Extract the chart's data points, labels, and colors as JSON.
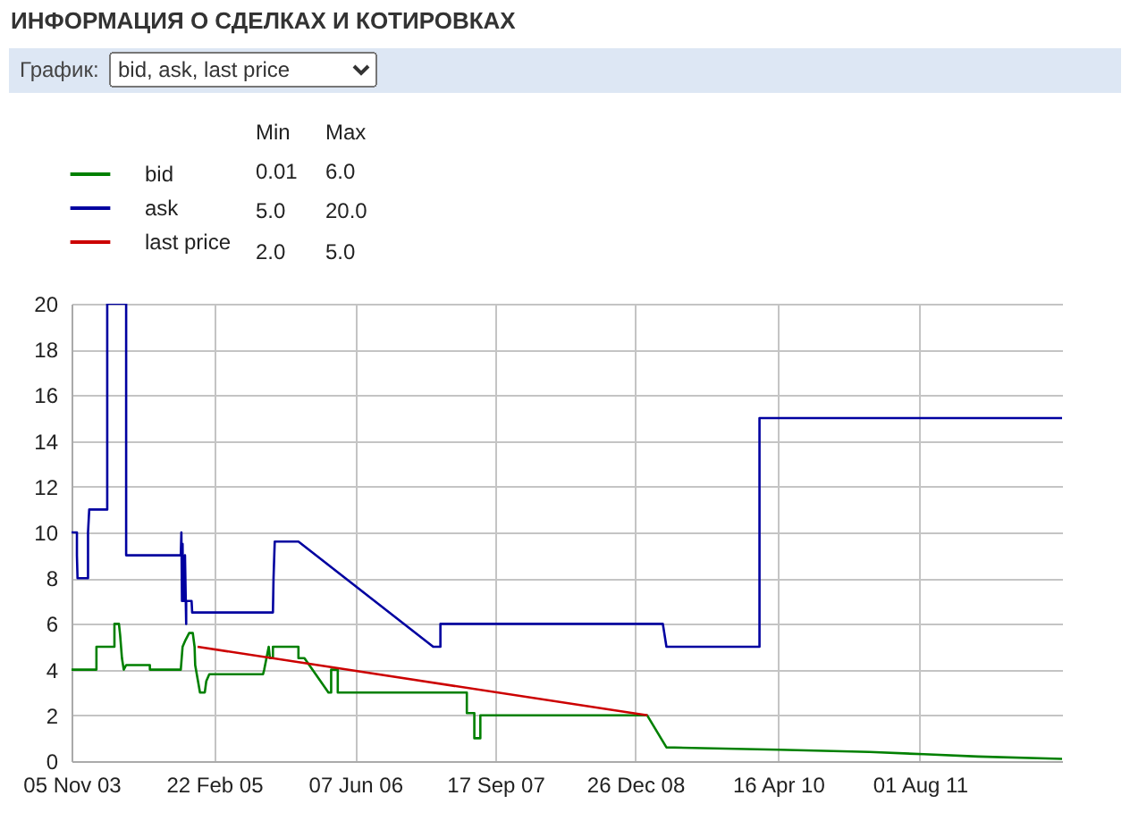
{
  "chart_data": {
    "type": "line",
    "title": "ИНФОРМАЦИЯ О СДЕЛКАХ И КОТИРОВКАХ",
    "annotations": [
      "График:",
      "bid, ask, last price",
      "Min",
      "Max",
      "0.01",
      "6.0",
      "5.0",
      "20.0",
      "2.0",
      "5.0"
    ],
    "xlim": [
      "2003-11-05",
      "2012-11-17"
    ],
    "xticks": [
      {
        "value": "2003-11-05",
        "label": "05 Nov 03"
      },
      {
        "value": "2005-02-22",
        "label": "22 Feb 05"
      },
      {
        "value": "2006-06-07",
        "label": "07 Jun 06"
      },
      {
        "value": "2007-09-17",
        "label": "17 Sep 07"
      },
      {
        "value": "2008-12-26",
        "label": "26 Dec 08"
      },
      {
        "value": "2010-04-16",
        "label": "16 Apr 10"
      },
      {
        "value": "2011-08-01",
        "label": "01 Aug 11"
      }
    ],
    "ylim": [
      0,
      20
    ],
    "yticks": [
      0,
      2,
      4,
      6,
      8,
      10,
      12,
      14,
      16,
      18,
      20
    ],
    "grid": true,
    "legend": "top left",
    "series": [
      {
        "name": "bid",
        "color": "#008000",
        "x": [
          "2003-11-05",
          "2004-01-27",
          "2004-01-27",
          "2004-03-27",
          "2004-03-27",
          "2004-04-11",
          "2004-04-15",
          "2004-04-21",
          "2004-04-27",
          "2004-05-05",
          "2004-07-23",
          "2004-07-23",
          "2004-11-03",
          "2004-11-09",
          "2004-11-19",
          "2004-12-01",
          "2004-12-13",
          "2004-12-19",
          "2004-12-21",
          "2005-01-06",
          "2005-01-22",
          "2005-01-27",
          "2005-02-06",
          "2005-08-04",
          "2005-08-08",
          "2005-08-23",
          "2005-08-27",
          "2005-09-06",
          "2005-09-06",
          "2005-11-30",
          "2005-11-30",
          "2005-12-20",
          "2006-03-10",
          "2006-03-19",
          "2006-03-19",
          "2006-04-10",
          "2006-04-10",
          "2007-06-14",
          "2007-06-14",
          "2007-07-09",
          "2007-07-09",
          "2007-07-29",
          "2007-07-29",
          "2009-02-04",
          "2009-04-09",
          "2010-04-17",
          "2011-02-15",
          "2011-08-15",
          "2012-02-11",
          "2012-11-17"
        ],
        "values": [
          4,
          4,
          5,
          5,
          6,
          6,
          5.5,
          4.5,
          4,
          4.2,
          4.2,
          4,
          4,
          5,
          5.3,
          5.6,
          5.6,
          5,
          4.2,
          3,
          3,
          3.5,
          3.8,
          3.8,
          4,
          5,
          4.5,
          4.5,
          5,
          5,
          4.5,
          4.5,
          3,
          3,
          4,
          4,
          3,
          3,
          2.1,
          2.1,
          1,
          1,
          2,
          2,
          0.6,
          0.5,
          0.4,
          0.3,
          0.2,
          0.1
        ]
      },
      {
        "name": "ask",
        "color": "#0000a0",
        "x": [
          "2003-11-05",
          "2003-11-23",
          "2003-11-23",
          "2003-11-25",
          "2003-12-30",
          "2003-12-30",
          "2004-01-03",
          "2004-03-03",
          "2004-03-03",
          "2004-05-05",
          "2004-05-05",
          "2004-11-03",
          "2004-11-05",
          "2004-11-07",
          "2004-11-09",
          "2004-11-11",
          "2004-11-15",
          "2004-11-17",
          "2004-11-21",
          "2004-11-21",
          "2004-12-09",
          "2004-12-11",
          "2005-09-06",
          "2005-09-08",
          "2005-09-12",
          "2005-11-30",
          "2007-02-22",
          "2007-03-18",
          "2007-03-18",
          "2009-03-28",
          "2009-04-09",
          "2010-02-13",
          "2010-02-13",
          "2012-11-17"
        ],
        "values": [
          10,
          10,
          9,
          8,
          8,
          10,
          11,
          11,
          20,
          20,
          9,
          9,
          10,
          7,
          9.5,
          7,
          7,
          9,
          6,
          7,
          7,
          6.5,
          6.5,
          8,
          9.6,
          9.6,
          5,
          5,
          6,
          6,
          5,
          5,
          15,
          15
        ]
      },
      {
        "name": "last price",
        "color": "#cc0000",
        "x": [
          "2004-12-29",
          "2009-02-05"
        ],
        "values": [
          5,
          2
        ]
      }
    ]
  }
}
